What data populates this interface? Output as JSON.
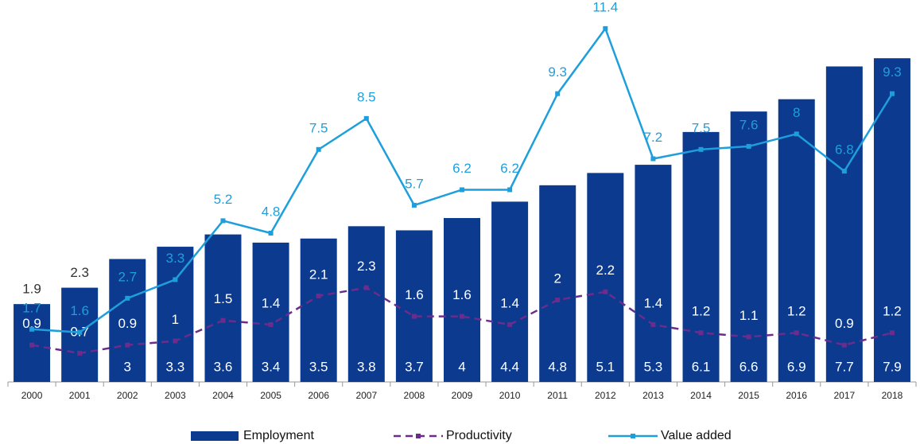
{
  "chart_data": {
    "type": "bar",
    "categories": [
      "2000",
      "2001",
      "2002",
      "2003",
      "2004",
      "2005",
      "2006",
      "2007",
      "2008",
      "2009",
      "2010",
      "2011",
      "2012",
      "2013",
      "2014",
      "2015",
      "2016",
      "2017",
      "2018"
    ],
    "series": [
      {
        "name": "Employment",
        "type": "bar",
        "color": "#0b3a8f",
        "values": [
          1.9,
          2.3,
          3.0,
          3.3,
          3.6,
          3.4,
          3.5,
          3.8,
          3.7,
          4.0,
          4.4,
          4.8,
          5.1,
          5.3,
          6.1,
          6.6,
          6.9,
          7.7,
          7.9
        ]
      },
      {
        "name": "Productivity",
        "type": "line",
        "dashed": true,
        "color": "#6b2c8c",
        "values": [
          0.9,
          0.7,
          0.9,
          1.0,
          1.5,
          1.4,
          2.1,
          2.3,
          1.6,
          1.6,
          1.4,
          2.0,
          2.2,
          1.4,
          1.2,
          1.1,
          1.2,
          0.9,
          1.2
        ]
      },
      {
        "name": "Value added",
        "type": "line",
        "axis": "y2",
        "color": "#1e9fdc",
        "values": [
          1.7,
          1.6,
          2.7,
          3.3,
          5.2,
          4.8,
          7.5,
          8.5,
          5.7,
          6.2,
          6.2,
          9.3,
          11.4,
          7.2,
          7.5,
          7.6,
          8.0,
          6.8,
          9.3
        ]
      }
    ],
    "ylim": [
      0,
      8.7
    ],
    "y2lim": [
      0,
      11.5
    ],
    "grid": false,
    "legend": "bottom"
  }
}
